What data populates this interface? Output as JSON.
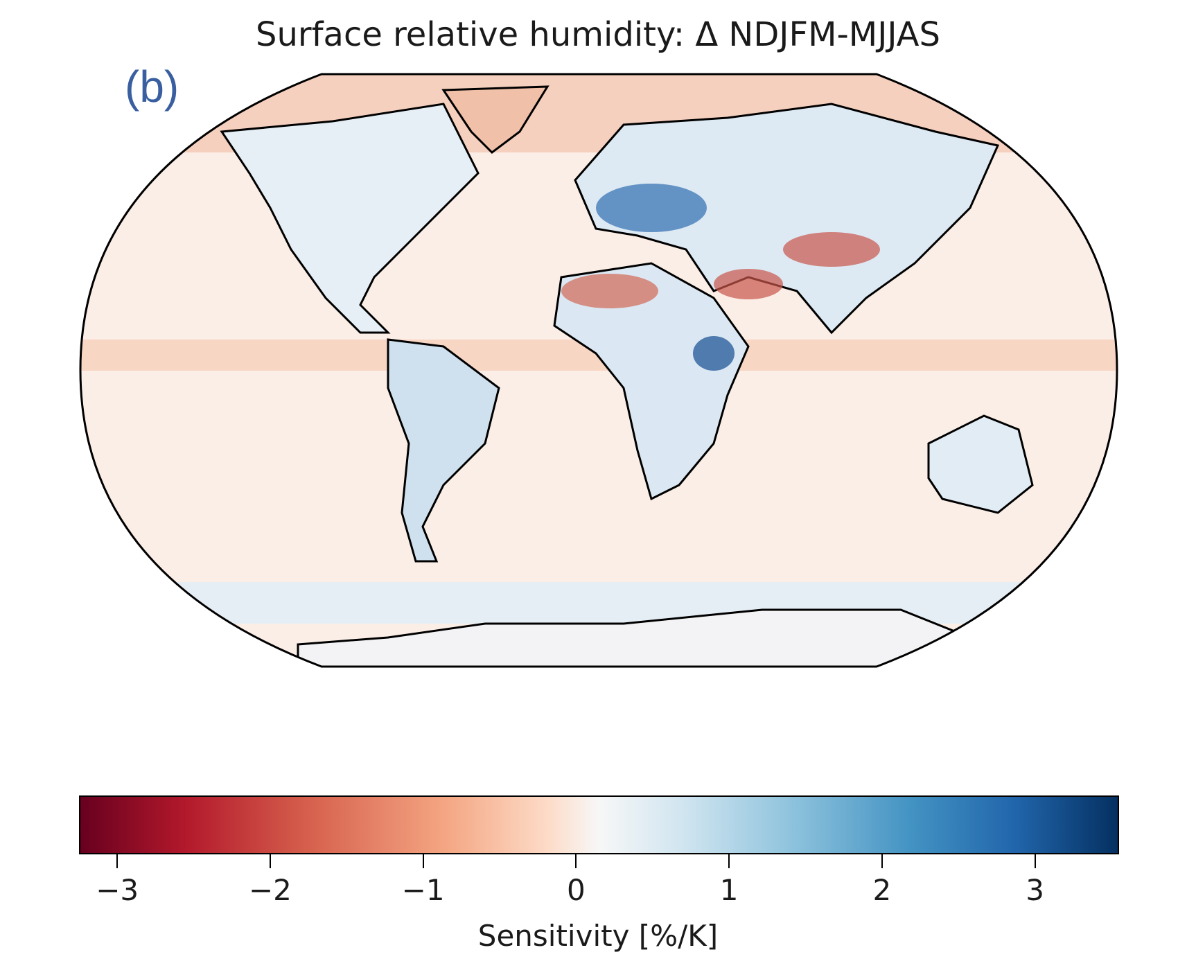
{
  "title": "Surface relative humidity: Δ NDJFM-MJJAS",
  "panel_label": "(b)",
  "chart_data": {
    "type": "heatmap",
    "title": "Surface relative humidity: Δ NDJFM-MJJAS",
    "projection": "Robinson (global)",
    "colormap": "RdBu",
    "colorbar": {
      "label": "Sensitivity [%/K]",
      "range": [
        -3.25,
        3.55
      ],
      "ticks": [
        -3,
        -2,
        -1,
        0,
        1,
        2,
        3
      ],
      "tick_labels": [
        "−3",
        "−2",
        "−1",
        "0",
        "1",
        "2",
        "3"
      ],
      "orientation": "horizontal",
      "placement": "bottom"
    }
  }
}
